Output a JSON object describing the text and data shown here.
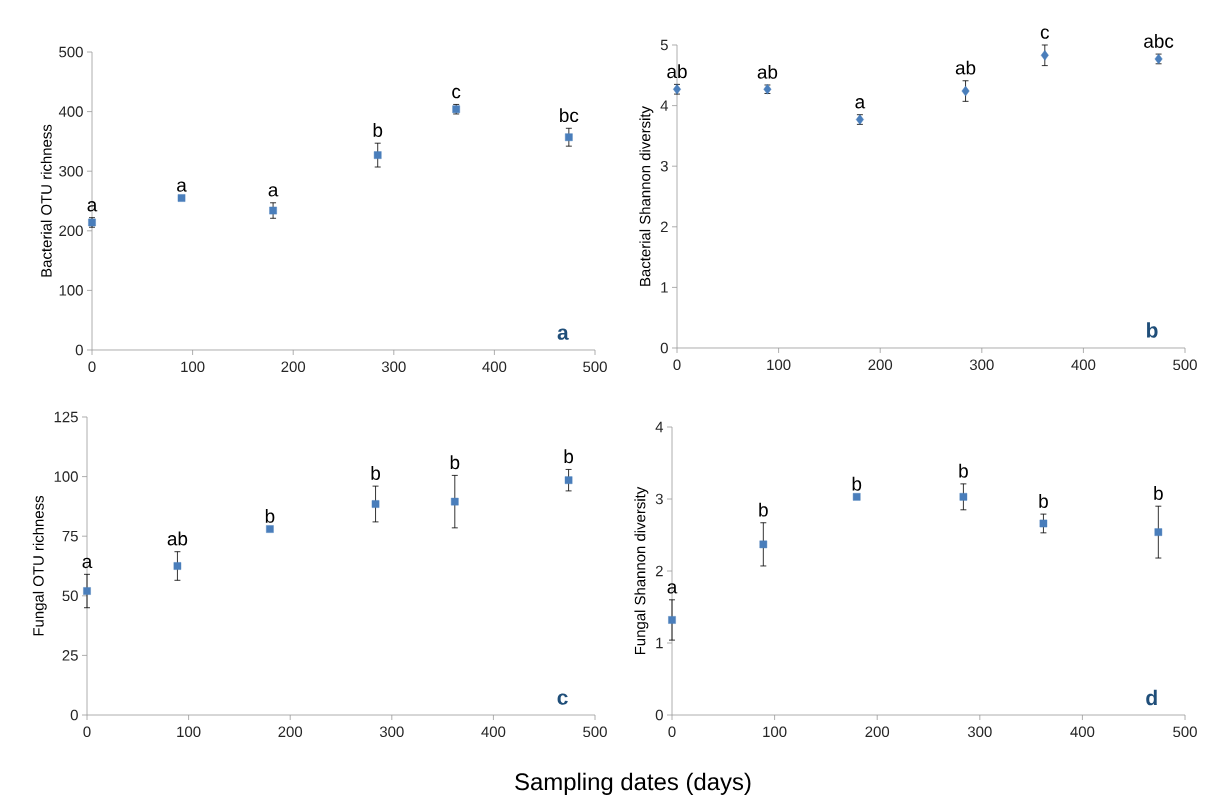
{
  "chart_data": [
    {
      "type": "scatter",
      "ylabel": "Bacterial OTU richness",
      "x": [
        0,
        89,
        180,
        284,
        362,
        474
      ],
      "values": [
        214,
        255,
        234,
        327,
        404,
        357
      ],
      "errors": [
        8,
        null,
        13,
        20,
        8,
        15
      ],
      "color": "#4a7ebb",
      "marker": "square",
      "xlim": [
        0,
        500
      ],
      "xticks": [
        0,
        100,
        200,
        300,
        400,
        500
      ],
      "ylim": [
        0,
        500
      ],
      "yticks": [
        0,
        100,
        200,
        300,
        400,
        500
      ],
      "annotations": [
        {
          "text": "a",
          "x": 0,
          "y": 214
        },
        {
          "text": "a",
          "x": 89,
          "y": 255
        },
        {
          "text": "a",
          "x": 180,
          "y": 234
        },
        {
          "text": "b",
          "x": 284,
          "y": 327
        },
        {
          "text": "c",
          "x": 362,
          "y": 404
        },
        {
          "text": "bc",
          "x": 474,
          "y": 357
        },
        "a"
      ]
    },
    {
      "type": "scatter",
      "ylabel": "Bacterial Shannon  diversity",
      "x": [
        0,
        89,
        180,
        284,
        362,
        474
      ],
      "values": [
        4.27,
        4.27,
        3.77,
        4.24,
        4.83,
        4.77
      ],
      "errors": [
        0.08,
        0.07,
        0.08,
        0.17,
        0.17,
        0.08
      ],
      "color": "#4a7ebb",
      "marker": "diamond",
      "xlim": [
        0,
        500
      ],
      "xticks": [
        0,
        100,
        200,
        300,
        400,
        500
      ],
      "ylim": [
        0,
        5
      ],
      "yticks": [
        0,
        1,
        2,
        3,
        4,
        5
      ],
      "annotations": [
        {
          "text": "ab",
          "x": 0,
          "y": 4.27
        },
        {
          "text": "ab",
          "x": 89,
          "y": 4.27
        },
        {
          "text": "a",
          "x": 180,
          "y": 3.77
        },
        {
          "text": "ab",
          "x": 284,
          "y": 4.24
        },
        {
          "text": "c",
          "x": 362,
          "y": 4.83
        },
        {
          "text": "abc",
          "x": 474,
          "y": 4.77
        },
        "b"
      ]
    },
    {
      "type": "scatter",
      "ylabel": "Fungal OTU richness",
      "xlabel": "Sampling dates (days)",
      "x": [
        0,
        89,
        180,
        284,
        362,
        474
      ],
      "values": [
        52,
        62.5,
        78,
        88.5,
        89.5,
        98.5
      ],
      "errors": [
        7,
        6,
        null,
        7.5,
        11,
        4.5
      ],
      "color": "#4a7ebb",
      "marker": "square",
      "xlim": [
        0,
        500
      ],
      "xticks": [
        0,
        100,
        200,
        300,
        400,
        500
      ],
      "ylim": [
        0,
        125
      ],
      "yticks": [
        0,
        25,
        50,
        75,
        100,
        125
      ],
      "annotations": [
        {
          "text": "a",
          "x": 0,
          "y": 52
        },
        {
          "text": "ab",
          "x": 89,
          "y": 62.5
        },
        {
          "text": "b",
          "x": 180,
          "y": 78
        },
        {
          "text": "b",
          "x": 284,
          "y": 88.5
        },
        {
          "text": "b",
          "x": 362,
          "y": 89.5
        },
        {
          "text": "b",
          "x": 474,
          "y": 98.5
        },
        "c"
      ]
    },
    {
      "type": "scatter",
      "ylabel": "Fungal Shannon diversity",
      "x": [
        0,
        89,
        180,
        284,
        362,
        474
      ],
      "values": [
        1.32,
        2.37,
        3.03,
        3.03,
        2.66,
        2.54
      ],
      "errors": [
        0.28,
        0.3,
        null,
        0.18,
        0.13,
        0.36
      ],
      "color": "#4a7ebb",
      "marker": "square",
      "xlim": [
        0,
        500
      ],
      "xticks": [
        0,
        100,
        200,
        300,
        400,
        500
      ],
      "ylim": [
        0,
        4
      ],
      "yticks": [
        0,
        1,
        2,
        3,
        4
      ],
      "annotations": [
        {
          "text": "a",
          "x": 0,
          "y": 1.32
        },
        {
          "text": "b",
          "x": 89,
          "y": 2.37
        },
        {
          "text": "b",
          "x": 180,
          "y": 3.03
        },
        {
          "text": "b",
          "x": 284,
          "y": 3.03
        },
        {
          "text": "b",
          "x": 362,
          "y": 2.66
        },
        {
          "text": "b",
          "x": 474,
          "y": 2.54
        },
        "d"
      ]
    }
  ]
}
